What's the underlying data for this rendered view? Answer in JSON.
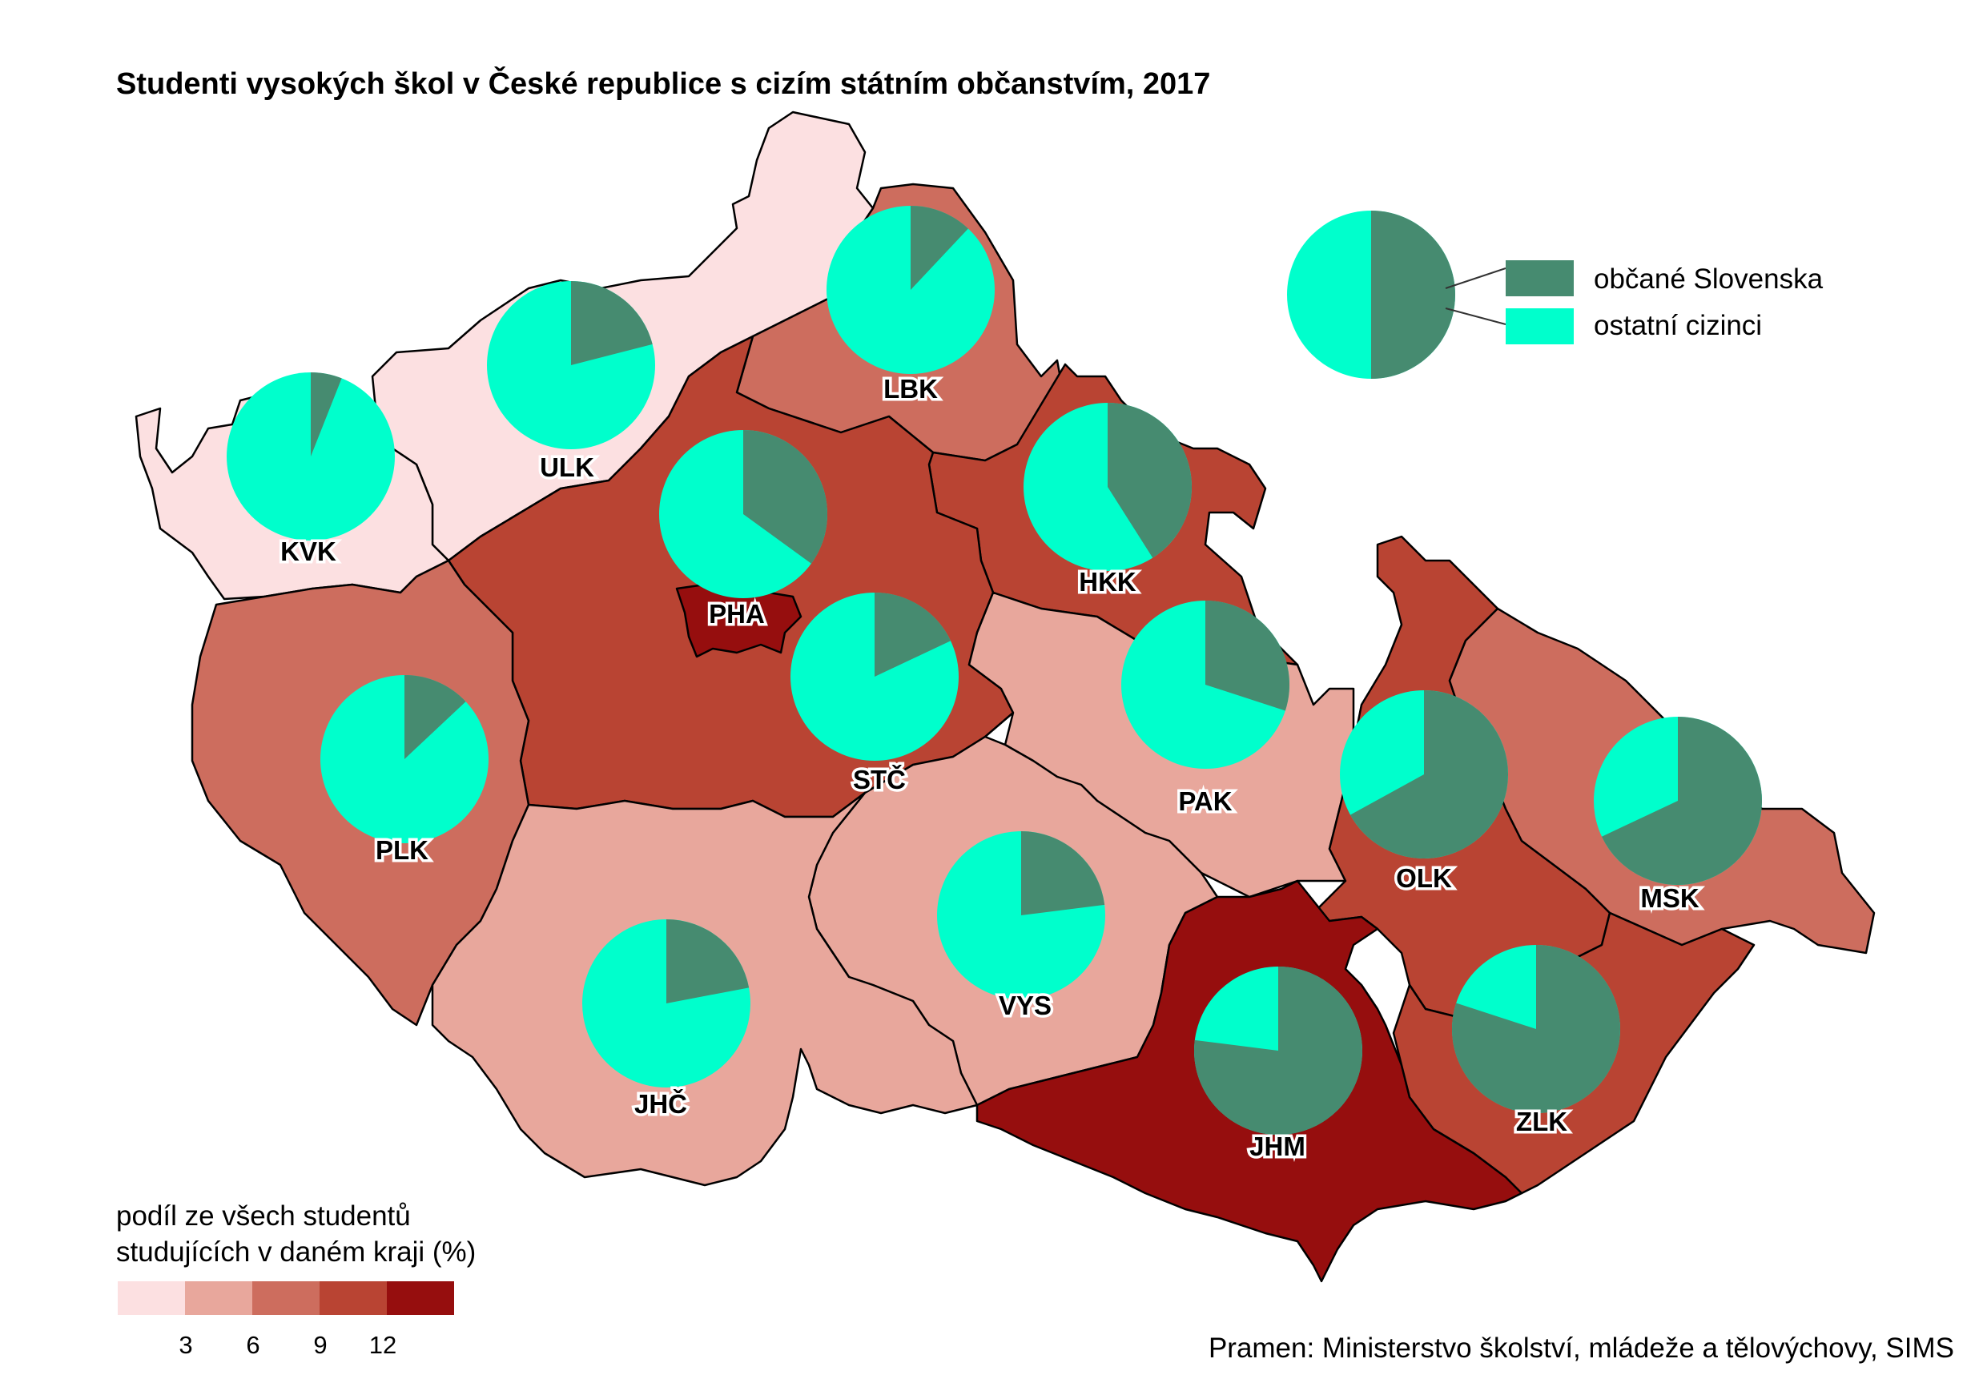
{
  "title": "Studenti vysokých škol v České republice s cizím státním občanstvím, 2017",
  "source": "Pramen: Ministerstvo školství, mládeže a tělovýchovy, SIMS",
  "colors": {
    "slovak": "#468b70",
    "other": "#00ffcc",
    "classes": [
      "#fce0e1",
      "#e8a79c",
      "#cd6d5e",
      "#b94433",
      "#960e0e"
    ]
  },
  "pie_legend": {
    "items": [
      {
        "label": "občané Slovenska"
      },
      {
        "label": "ostatní cizinci"
      }
    ]
  },
  "choropleth_legend": {
    "title_line1": "podíl ze všech studentů",
    "title_line2": "studujících v daném kraji (%)",
    "breaks": [
      "3",
      "6",
      "9",
      "12"
    ]
  },
  "regions": [
    {
      "code": "KVK",
      "share_class": 0,
      "slovak_share": 0.06
    },
    {
      "code": "ULK",
      "share_class": 0,
      "slovak_share": 0.21
    },
    {
      "code": "LBK",
      "share_class": 2,
      "slovak_share": 0.12
    },
    {
      "code": "HKK",
      "share_class": 3,
      "slovak_share": 0.41
    },
    {
      "code": "PHA",
      "share_class": 4,
      "slovak_share": 0.35
    },
    {
      "code": "STČ",
      "share_class": 3,
      "slovak_share": 0.18
    },
    {
      "code": "PLK",
      "share_class": 2,
      "slovak_share": 0.13
    },
    {
      "code": "PAK",
      "share_class": 1,
      "slovak_share": 0.3
    },
    {
      "code": "OLK",
      "share_class": 3,
      "slovak_share": 0.67
    },
    {
      "code": "MSK",
      "share_class": 2,
      "slovak_share": 0.68
    },
    {
      "code": "VYS",
      "share_class": 1,
      "slovak_share": 0.23
    },
    {
      "code": "JHČ",
      "share_class": 1,
      "slovak_share": 0.22
    },
    {
      "code": "JHM",
      "share_class": 4,
      "slovak_share": 0.77
    },
    {
      "code": "ZLK",
      "share_class": 3,
      "slovak_share": 0.8
    }
  ]
}
